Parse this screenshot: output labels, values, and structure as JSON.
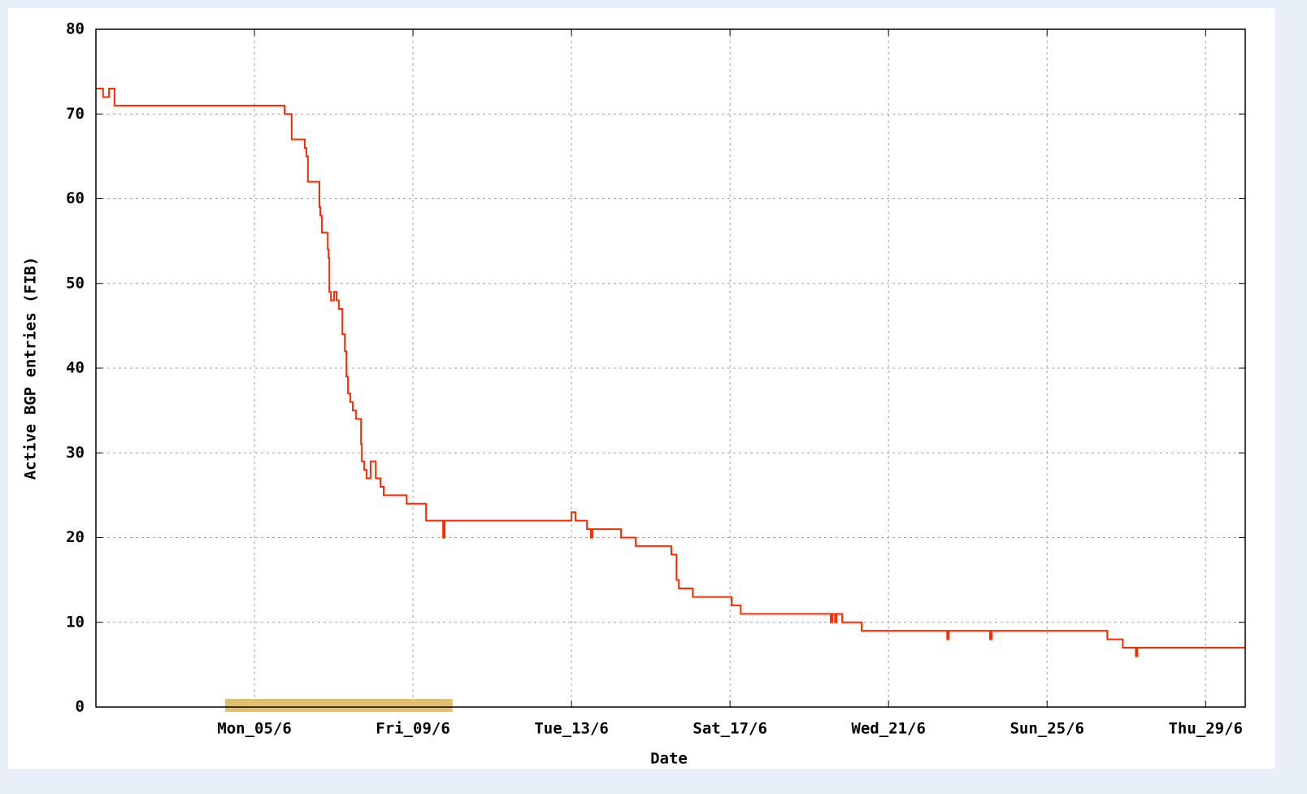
{
  "chart_data": {
    "type": "line",
    "step": true,
    "xlabel": "Date",
    "ylabel": "Active BGP entries (FIB)",
    "xlim": [
      1,
      30
    ],
    "xticks": [
      {
        "value": 5,
        "label": "Mon_05/6"
      },
      {
        "value": 9,
        "label": "Fri_09/6"
      },
      {
        "value": 13,
        "label": "Tue_13/6"
      },
      {
        "value": 17,
        "label": "Sat_17/6"
      },
      {
        "value": 21,
        "label": "Wed_21/6"
      },
      {
        "value": 25,
        "label": "Sun_25/6"
      },
      {
        "value": 29,
        "label": "Thu_29/6"
      }
    ],
    "ylim": [
      0,
      80
    ],
    "yticks": [
      0,
      10,
      20,
      30,
      40,
      50,
      60,
      70,
      80
    ],
    "grid": true,
    "highlight_span": [
      4.26,
      10
    ],
    "highlight_color": "#e0c070",
    "series": [
      {
        "color": "#ff2a00",
        "x": [
          1.0,
          1.18,
          1.33,
          1.47,
          5.76,
          5.94,
          6.27,
          6.31,
          6.35,
          6.64,
          6.66,
          6.7,
          6.85,
          6.87,
          6.89,
          6.93,
          7.01,
          7.07,
          7.13,
          7.22,
          7.28,
          7.32,
          7.36,
          7.42,
          7.48,
          7.56,
          7.69,
          7.71,
          7.77,
          7.83,
          7.93,
          8.06,
          8.18,
          8.26,
          8.84,
          9.33,
          9.76,
          9.8,
          13.0,
          13.1,
          13.39,
          13.49,
          13.53,
          14.25,
          14.62,
          15.52,
          15.65,
          15.71,
          16.06,
          17.04,
          17.27,
          19.54,
          19.58,
          19.65,
          19.69,
          19.83,
          20.32,
          22.48,
          22.52,
          23.56,
          23.6,
          26.52,
          26.91,
          27.24,
          27.28,
          30.0
        ],
        "values": [
          73,
          72,
          73,
          71,
          70,
          67,
          66,
          65,
          62,
          59,
          58,
          56,
          54,
          53,
          49,
          48,
          49,
          48,
          47,
          44,
          42,
          39,
          37,
          36,
          35,
          34,
          31,
          29,
          28,
          27,
          29,
          27,
          26,
          25,
          24,
          22,
          20,
          22,
          23,
          22,
          21,
          20,
          21,
          20,
          19,
          18,
          15,
          14,
          13,
          12,
          11,
          10,
          11,
          10,
          11,
          10,
          9,
          8,
          9,
          8,
          9,
          8,
          7,
          6,
          7,
          7
        ]
      }
    ]
  }
}
